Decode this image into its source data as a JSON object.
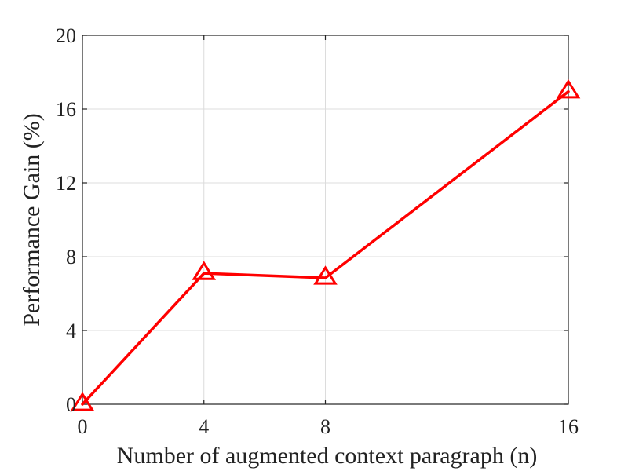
{
  "chart_data": {
    "type": "line",
    "xlabel": "Number of augmented context paragraph (n)",
    "ylabel": "Performance Gain (%)",
    "x": [
      0,
      4,
      8,
      16
    ],
    "xticks": [
      0,
      4,
      8,
      16
    ],
    "yticks": [
      0,
      4,
      8,
      12,
      16,
      20
    ],
    "xlim": [
      0,
      16
    ],
    "ylim": [
      0,
      20
    ],
    "grid": true,
    "series": [
      {
        "values": [
          0,
          7.1,
          6.85,
          16.95
        ],
        "marker": "triangle",
        "color": "#ff0000"
      }
    ]
  },
  "colors": {
    "grid": "#dcdcdc",
    "axis": "#222222",
    "series": "#ff0000"
  }
}
